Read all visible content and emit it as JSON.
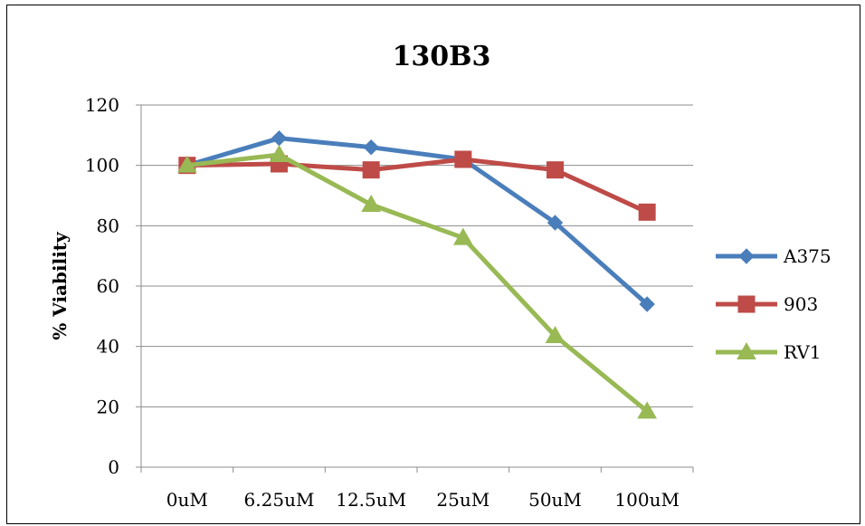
{
  "chart_data": {
    "type": "line",
    "title": "130B3",
    "xlabel": "",
    "ylabel": "% Viability",
    "categories": [
      "0uM",
      "6.25uM",
      "12.5uM",
      "25uM",
      "50uM",
      "100uM"
    ],
    "ylim": [
      0,
      120
    ],
    "yticks": [
      0,
      20,
      40,
      60,
      80,
      100,
      120
    ],
    "grid": true,
    "legend_position": "right",
    "series": [
      {
        "name": "A375",
        "color": "#4a7ebb",
        "marker": "diamond",
        "values": [
          100,
          109,
          106,
          102,
          81,
          54
        ]
      },
      {
        "name": "903",
        "color": "#be4b48",
        "marker": "square",
        "values": [
          100,
          100.5,
          98.5,
          102,
          98.5,
          84.5
        ]
      },
      {
        "name": "RV1",
        "color": "#98b954",
        "marker": "triangle",
        "values": [
          100,
          103.5,
          87,
          76,
          43.5,
          18.5
        ]
      }
    ]
  }
}
